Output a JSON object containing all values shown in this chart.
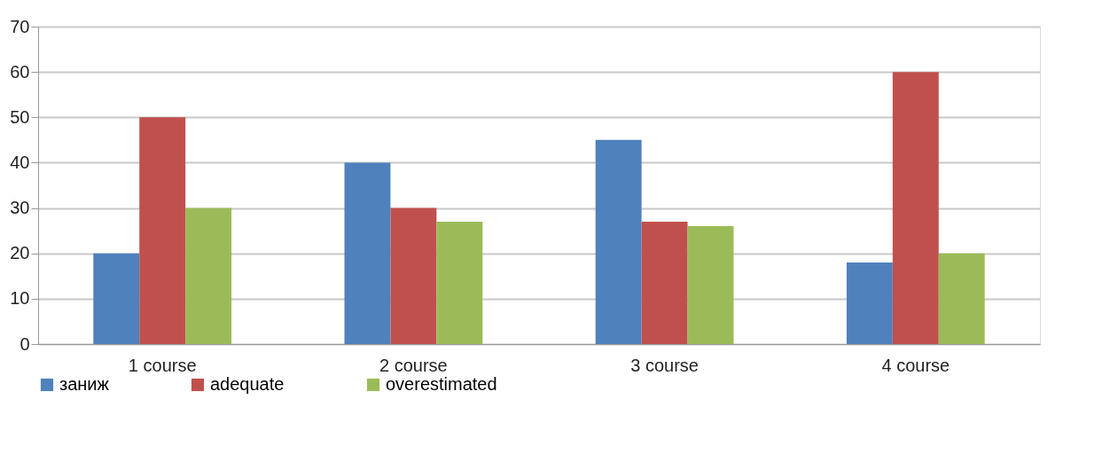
{
  "chart_data": {
    "type": "bar",
    "categories": [
      "1 course",
      "2  course",
      "3 course",
      "4  course"
    ],
    "series": [
      {
        "name": "заниж",
        "color": "#4f81bd",
        "values": [
          20,
          40,
          45,
          18
        ]
      },
      {
        "name": "adequate",
        "color": "#c0504d",
        "values": [
          50,
          30,
          27,
          60
        ]
      },
      {
        "name": "overestimated",
        "color": "#9bbb59",
        "values": [
          30,
          27,
          26,
          20
        ]
      }
    ],
    "ylim": [
      0,
      70
    ],
    "yticks": [
      0,
      10,
      20,
      30,
      40,
      50,
      60,
      70
    ],
    "grid": "y",
    "legend": "bottom"
  }
}
